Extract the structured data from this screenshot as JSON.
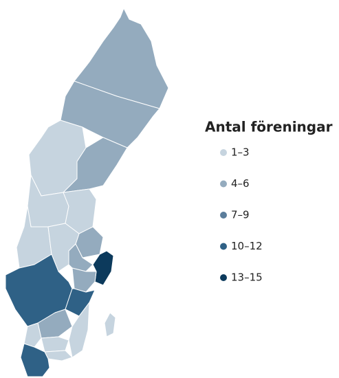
{
  "legend": {
    "title": "Antal föreningar",
    "items": [
      {
        "label": "1–3",
        "color": "#c6d4df"
      },
      {
        "label": "4–6",
        "color": "#94abbe"
      },
      {
        "label": "7–9",
        "color": "#5b7d9b"
      },
      {
        "label": "10–12",
        "color": "#2f6186"
      },
      {
        "label": "13–15",
        "color": "#0c3a5c"
      }
    ]
  }
}
